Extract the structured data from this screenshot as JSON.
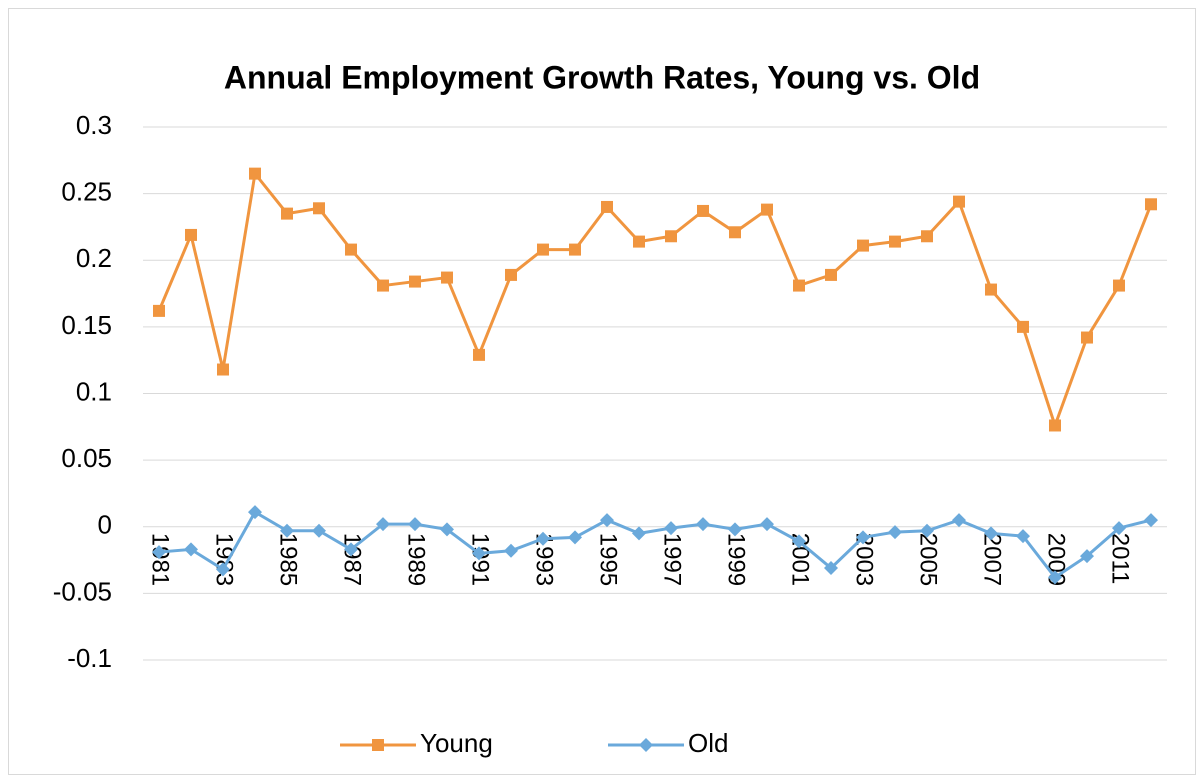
{
  "chart_data": {
    "type": "line",
    "title": "Annual Employment Growth Rates, Young vs. Old",
    "categories": [
      "1981",
      null,
      "1983",
      null,
      "1985",
      null,
      "1987",
      null,
      "1989",
      null,
      "1991",
      null,
      "1993",
      null,
      "1995",
      null,
      "1997",
      null,
      "1999",
      null,
      "2001",
      null,
      "2003",
      null,
      "2005",
      null,
      "2007",
      null,
      "2009",
      null,
      "2011",
      null
    ],
    "series": [
      {
        "name": "Young",
        "color": "#f0953f",
        "marker": "square",
        "values": [
          0.162,
          0.219,
          0.118,
          0.265,
          0.235,
          0.239,
          0.208,
          0.181,
          0.184,
          0.187,
          0.129,
          0.189,
          0.208,
          0.208,
          0.24,
          0.214,
          0.218,
          0.237,
          0.221,
          0.238,
          0.181,
          0.189,
          0.211,
          0.214,
          0.218,
          0.244,
          0.178,
          0.15,
          0.076,
          0.142,
          0.181,
          0.242
        ]
      },
      {
        "name": "Old",
        "color": "#6aa9db",
        "marker": "diamond",
        "values": [
          -0.019,
          -0.017,
          -0.032,
          0.011,
          -0.003,
          -0.003,
          -0.017,
          0.002,
          0.002,
          -0.002,
          -0.02,
          -0.018,
          -0.009,
          -0.008,
          0.005,
          -0.005,
          -0.001,
          0.002,
          -0.002,
          0.002,
          -0.011,
          -0.031,
          -0.008,
          -0.004,
          -0.003,
          0.005,
          -0.005,
          -0.007,
          -0.038,
          -0.022,
          -0.001,
          0.005
        ]
      }
    ],
    "ylim": [
      -0.1,
      0.3
    ],
    "yticks": [
      -0.1,
      -0.05,
      0,
      0.05,
      0.1,
      0.15,
      0.2,
      0.25,
      0.3
    ],
    "grid": true,
    "legend": "bottom"
  }
}
